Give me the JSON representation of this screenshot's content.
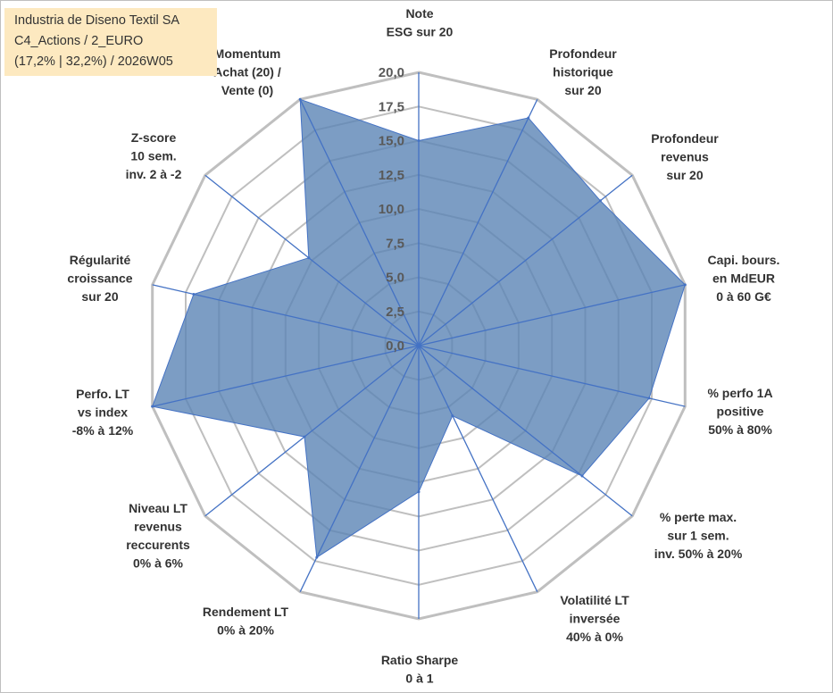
{
  "header": {
    "line1": "Industria de Diseno Textil SA",
    "line2": "C4_Actions / 2_EURO",
    "line3": "(17,2% | 32,2%) / 2026W05"
  },
  "colors": {
    "fill": "#5b85b5",
    "stroke": "#4472c4",
    "grid": "#bfbfbf",
    "header_bg": "#fde9c0"
  },
  "chart_data": {
    "type": "radar",
    "title": "Industria de Diseno Textil SA",
    "rmin": 0,
    "rmax": 20,
    "ticks": [
      "0,0",
      "2,5",
      "5,0",
      "7,5",
      "10,0",
      "12,5",
      "15,0",
      "17,5",
      "20,0"
    ],
    "series": [
      {
        "name": "Industria de Diseno Textil SA",
        "values": [
          15,
          18.5,
          17,
          20,
          17.3,
          15.3,
          5.7,
          10.7,
          17.2,
          10.7,
          20,
          16.9,
          10.3,
          20
        ]
      }
    ],
    "axes": [
      {
        "lines": [
          "Note",
          "ESG sur 20"
        ]
      },
      {
        "lines": [
          "Profondeur",
          "historique",
          "sur 20"
        ]
      },
      {
        "lines": [
          "Profondeur",
          "revenus",
          "sur 20"
        ]
      },
      {
        "lines": [
          "Capi. bours.",
          "en MdEUR",
          "0 à 60 G€"
        ]
      },
      {
        "lines": [
          "% perfo 1A",
          "positive",
          "50% à 80%"
        ]
      },
      {
        "lines": [
          "% perte max.",
          "sur 1 sem.",
          "inv. 50% à 20%"
        ]
      },
      {
        "lines": [
          "Volatilité LT",
          "inversée",
          "40% à 0%"
        ]
      },
      {
        "lines": [
          "Ratio Sharpe",
          "0 à 1"
        ]
      },
      {
        "lines": [
          "Rendement LT",
          "0% à 20%"
        ]
      },
      {
        "lines": [
          "Niveau LT",
          "revenus",
          "reccurents",
          "0% à 6%"
        ]
      },
      {
        "lines": [
          "Perfo. LT",
          "vs index",
          "-8% à 12%"
        ]
      },
      {
        "lines": [
          "Régularité",
          "croissance",
          "sur 20"
        ]
      },
      {
        "lines": [
          "Z-score",
          "10 sem.",
          "inv. 2 à -2"
        ]
      },
      {
        "lines": [
          "Momentum",
          "Achat (20) /",
          "Vente (0)"
        ]
      }
    ]
  }
}
